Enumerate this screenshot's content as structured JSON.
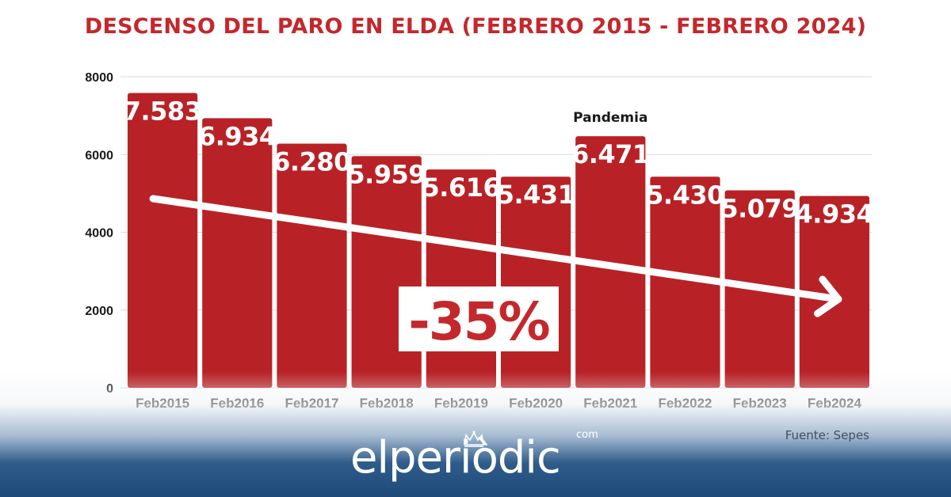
{
  "colors": {
    "title": "#c3282c",
    "bar": "#b82226",
    "bar_label": "#ffffff",
    "grid": "#d9d9d9",
    "axis_text": "#1a1a1a",
    "arrow": "#ffffff",
    "percent_text": "#c3282c",
    "footer": "#1d4a79"
  },
  "chart_data": {
    "type": "bar",
    "title": "DESCENSO DEL PARO EN ELDA (FEBRERO 2015 - FEBRERO 2024)",
    "xlabel": "",
    "ylabel": "",
    "categories": [
      "Feb2015",
      "Feb2016",
      "Feb2017",
      "Feb2018",
      "Feb2019",
      "Feb2020",
      "Feb2021",
      "Feb2022",
      "Feb2023",
      "Feb2024"
    ],
    "values": [
      7583,
      6934,
      6280,
      5959,
      5616,
      5431,
      6471,
      5430,
      5079,
      4934
    ],
    "data_labels": [
      "7.583",
      "6.934",
      "6.280",
      "5.959",
      "5.616",
      "5.431",
      "6.471",
      "5.430",
      "5.079",
      "4.934"
    ],
    "ylim": [
      0,
      8000
    ],
    "yticks": [
      0,
      2000,
      4000,
      6000,
      8000
    ],
    "grid": true,
    "annotations": [
      {
        "text": "Pandemia",
        "category": "Feb2021"
      },
      {
        "text": "-35%",
        "kind": "trend-arrow",
        "from": "Feb2015",
        "to": "Feb2024"
      }
    ]
  },
  "source": "Fuente: Sepes",
  "logo": {
    "name": "elperiòdic",
    "suffix": "com",
    "icon": "crown-crest-icon"
  }
}
